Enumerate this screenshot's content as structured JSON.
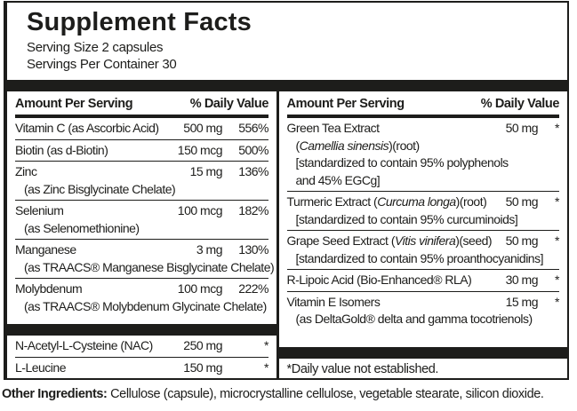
{
  "title": "Supplement Facts",
  "serving_size": "Serving Size 2 capsules",
  "servings_per_container": "Servings Per Container 30",
  "colors": {
    "ink": "#1d1d1b",
    "background": "#ffffff"
  },
  "columns": [
    {
      "header_amount": "Amount Per Serving",
      "header_dv": "% Daily Value",
      "sections": [
        {
          "rows": [
            {
              "name": [
                [
                  "Vitamin C (as Ascorbic Acid)",
                  0
                ]
              ],
              "amount": "500 mg",
              "dv": "556%",
              "subs": []
            },
            {
              "name": [
                [
                  "Biotin (as d-Biotin)",
                  0
                ]
              ],
              "amount": "150 mcg",
              "dv": "500%",
              "subs": []
            },
            {
              "name": [
                [
                  "Zinc",
                  0
                ]
              ],
              "amount": "15 mg",
              "dv": "136%",
              "subs": [
                [
                  [
                    "(as Zinc Bisglycinate Chelate)",
                    0
                  ]
                ]
              ]
            },
            {
              "name": [
                [
                  "Selenium",
                  0
                ]
              ],
              "amount": "100 mcg",
              "dv": "182%",
              "subs": [
                [
                  [
                    "(as Selenomethionine)",
                    0
                  ]
                ]
              ]
            },
            {
              "name": [
                [
                  "Manganese",
                  0
                ]
              ],
              "amount": "3 mg",
              "dv": "130%",
              "subs": [
                [
                  [
                    "(as TRAACS® Manganese Bisglycinate Chelate)",
                    0
                  ]
                ]
              ]
            },
            {
              "name": [
                [
                  "Molybdenum",
                  0
                ]
              ],
              "amount": "100 mcg",
              "dv": "222%",
              "subs": [
                [
                  [
                    "(as TRAACS® Molybdenum Glycinate Chelate)",
                    0
                  ]
                ]
              ]
            }
          ]
        },
        {
          "rows": [
            {
              "name": [
                [
                  "N-Acetyl-L-Cysteine (NAC)",
                  0
                ]
              ],
              "amount": "250 mg",
              "dv": "*",
              "subs": []
            },
            {
              "name": [
                [
                  "L-Leucine",
                  0
                ]
              ],
              "amount": "150 mg",
              "dv": "*",
              "subs": []
            }
          ]
        }
      ]
    },
    {
      "header_amount": "Amount Per Serving",
      "header_dv": "% Daily Value",
      "sections": [
        {
          "rows": [
            {
              "name": [
                [
                  "Green Tea Extract",
                  0
                ]
              ],
              "amount": "50 mg",
              "dv": "*",
              "subs": [
                [
                  [
                    "(",
                    0
                  ],
                  [
                    "Camellia sinensis",
                    1
                  ],
                  [
                    ")(root)",
                    0
                  ]
                ],
                [
                  [
                    "[standardized to contain 95% polyphenols",
                    0
                  ]
                ],
                [
                  [
                    "and 45% EGCg]",
                    0
                  ]
                ]
              ]
            },
            {
              "name": [
                [
                  "Turmeric Extract (",
                  0
                ],
                [
                  "Curcuma longa",
                  1
                ],
                [
                  ")(root)",
                  0
                ]
              ],
              "amount": "50 mg",
              "dv": "*",
              "subs": [
                [
                  [
                    "[standardized to contain 95% curcuminoids]",
                    0
                  ]
                ]
              ]
            },
            {
              "name": [
                [
                  "Grape Seed Extract (",
                  0
                ],
                [
                  "Vitis vinifera",
                  1
                ],
                [
                  ")(seed)",
                  0
                ]
              ],
              "amount": "50 mg",
              "dv": "*",
              "subs": [
                [
                  [
                    "[standardized to contain 95% proanthocyanidins]",
                    0
                  ]
                ]
              ]
            },
            {
              "name": [
                [
                  "R-Lipoic Acid (Bio-Enhanced® RLA)",
                  0
                ]
              ],
              "amount": "30 mg",
              "dv": "*",
              "subs": []
            },
            {
              "name": [
                [
                  "Vitamin E Isomers",
                  0
                ]
              ],
              "amount": "15 mg",
              "dv": "*",
              "subs": [
                [
                  [
                    "(as DeltaGold® delta and gamma tocotrienols)",
                    0
                  ]
                ]
              ]
            }
          ]
        }
      ],
      "footnote": "*Daily value not established."
    }
  ],
  "other_ingredients": {
    "label": "Other Ingredients:",
    "text": " Cellulose (capsule), microcrystalline cellulose, vegetable stearate, silicon dioxide."
  }
}
